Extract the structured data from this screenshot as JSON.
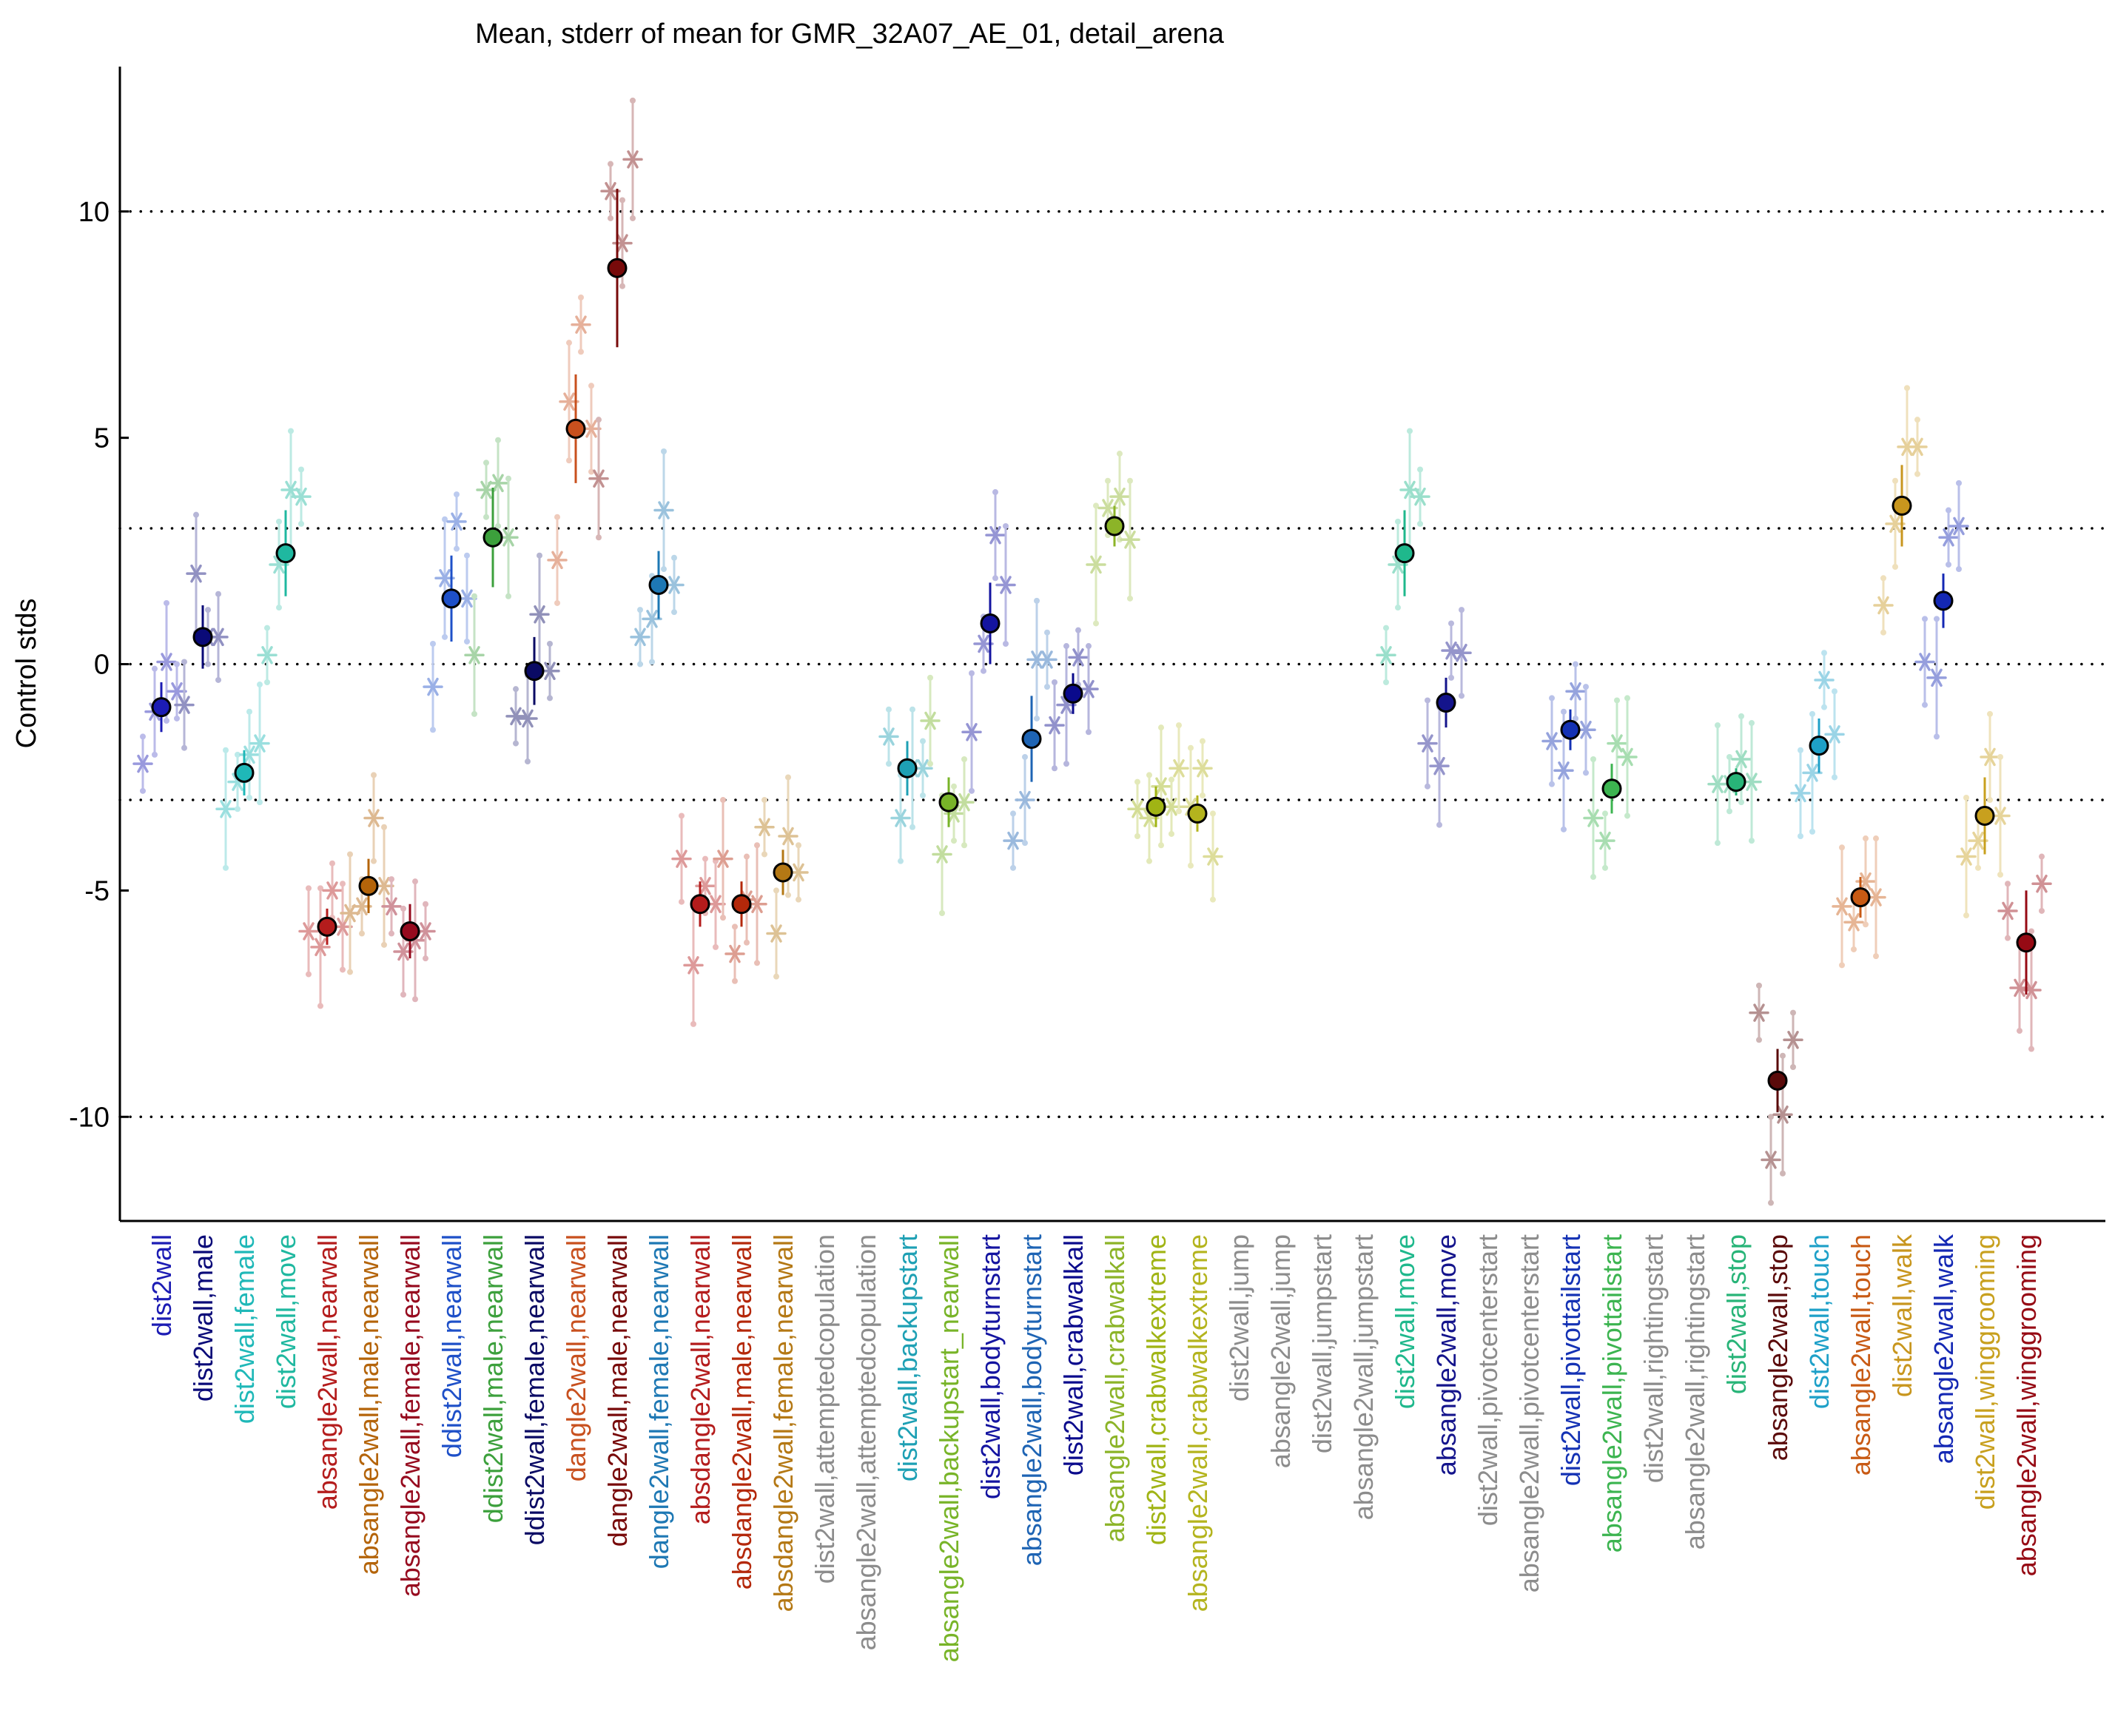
{
  "chart_data": {
    "type": "scatter",
    "title": "Mean, stderr of mean for GMR_32A07_AE_01, detail_arena",
    "ylabel": "Control stds",
    "xlabel": "",
    "ylim": [
      -12.3,
      13.2
    ],
    "yticks": [
      -10,
      -5,
      0,
      5,
      10
    ],
    "ytick_labels": [
      "-10",
      "-5",
      "0",
      "5",
      "10"
    ],
    "reference_lines": [
      -10,
      -3,
      0,
      3,
      10
    ],
    "grid": false,
    "categories": [
      {
        "label": "dist2wall",
        "color": "#1c1cb4",
        "mean": -0.95,
        "err_lo": -1.5,
        "err_hi": -0.4,
        "exp": [
          -2.2,
          -1.05,
          0.05,
          -0.6
        ]
      },
      {
        "label": "dist2wall,male",
        "color": "#0a0a78",
        "mean": 0.6,
        "err_lo": -0.1,
        "err_hi": 1.3,
        "exp": [
          -0.9,
          2.0,
          0.6,
          0.6
        ]
      },
      {
        "label": "dist2wall,female",
        "color": "#1fb8b8",
        "mean": -2.4,
        "err_lo": -2.9,
        "err_hi": -1.9,
        "exp": [
          -3.2,
          -2.6,
          -2.0,
          -1.75
        ]
      },
      {
        "label": "dist2wall,move",
        "color": "#1fb8a0",
        "mean": 2.45,
        "err_lo": 1.5,
        "err_hi": 3.4,
        "exp": [
          0.2,
          2.2,
          3.85,
          3.7
        ]
      },
      {
        "label": "absangle2wall,nearwall",
        "color": "#b41c1c",
        "mean": -5.8,
        "err_lo": -6.2,
        "err_hi": -5.4,
        "exp": [
          -5.9,
          -6.25,
          -5.0,
          -5.8
        ]
      },
      {
        "label": "absangle2wall,male,nearwall",
        "color": "#b4640a",
        "mean": -4.9,
        "err_lo": -5.5,
        "err_hi": -4.3,
        "exp": [
          -5.5,
          -5.35,
          -3.4,
          -4.9
        ]
      },
      {
        "label": "absangle2wall,female,nearwall",
        "color": "#960a1e",
        "mean": -5.9,
        "err_lo": -6.5,
        "err_hi": -5.3,
        "exp": [
          -5.35,
          -6.35,
          -6.1,
          -5.9
        ]
      },
      {
        "label": "ddist2wall,nearwall",
        "color": "#1e50c8",
        "mean": 1.45,
        "err_lo": 0.5,
        "err_hi": 2.4,
        "exp": [
          -0.5,
          1.9,
          3.15,
          1.45
        ]
      },
      {
        "label": "ddist2wall,male,nearwall",
        "color": "#3ca03c",
        "mean": 2.8,
        "err_lo": 1.7,
        "err_hi": 3.9,
        "exp": [
          0.2,
          3.85,
          4.0,
          2.8
        ]
      },
      {
        "label": "ddist2wall,female,nearwall",
        "color": "#0a0a64",
        "mean": -0.15,
        "err_lo": -0.9,
        "err_hi": 0.6,
        "exp": [
          -1.15,
          -1.2,
          1.1,
          -0.15
        ]
      },
      {
        "label": "dangle2wall,nearwall",
        "color": "#c8501e",
        "mean": 5.2,
        "err_lo": 4.0,
        "err_hi": 6.4,
        "exp": [
          2.3,
          5.8,
          7.5,
          5.2
        ]
      },
      {
        "label": "dangle2wall,male,nearwall",
        "color": "#780a0a",
        "mean": 8.75,
        "err_lo": 7.0,
        "err_hi": 10.5,
        "exp": [
          4.1,
          10.45,
          9.3,
          11.15
        ]
      },
      {
        "label": "dangle2wall,female,nearwall",
        "color": "#1e78b4",
        "mean": 1.75,
        "err_lo": 1.0,
        "err_hi": 2.5,
        "exp": [
          0.6,
          1.0,
          3.4,
          1.75
        ]
      },
      {
        "label": "absdangle2wall,nearwall",
        "color": "#b41c1c",
        "mean": -5.3,
        "err_lo": -5.8,
        "err_hi": -4.8,
        "exp": [
          -4.3,
          -6.65,
          -4.9,
          -5.3
        ]
      },
      {
        "label": "absdangle2wall,male,nearwall",
        "color": "#b4280a",
        "mean": -5.3,
        "err_lo": -5.8,
        "err_hi": -4.8,
        "exp": [
          -4.3,
          -6.4,
          -5.2,
          -5.3
        ]
      },
      {
        "label": "absdangle2wall,female,nearwall",
        "color": "#b47814",
        "mean": -4.6,
        "err_lo": -5.1,
        "err_hi": -4.1,
        "exp": [
          -3.6,
          -5.95,
          -3.8,
          -4.6
        ]
      },
      {
        "label": "dist2wall,attemptedcopulation",
        "color": "#8c8c8c",
        "mean": null,
        "err_lo": null,
        "err_hi": null,
        "exp": []
      },
      {
        "label": "absangle2wall,attemptedcopulation",
        "color": "#8c8c8c",
        "mean": null,
        "err_lo": null,
        "err_hi": null,
        "exp": []
      },
      {
        "label": "dist2wall,backupstart",
        "color": "#1ea0b4",
        "mean": -2.3,
        "err_lo": -2.9,
        "err_hi": -1.7,
        "exp": [
          -1.6,
          -3.4,
          -2.3,
          -2.3
        ]
      },
      {
        "label": "absangle2wall,backupstart_nearwall",
        "color": "#78b428",
        "mean": -3.05,
        "err_lo": -3.6,
        "err_hi": -2.5,
        "exp": [
          -1.25,
          -4.2,
          -3.3,
          -3.05
        ]
      },
      {
        "label": "dist2wall,bodyturnstart",
        "color": "#1414a0",
        "mean": 0.9,
        "err_lo": 0.0,
        "err_hi": 1.8,
        "exp": [
          -1.5,
          0.45,
          2.85,
          1.75
        ]
      },
      {
        "label": "absangle2wall,bodyturnstart",
        "color": "#1e64b4",
        "mean": -1.65,
        "err_lo": -2.6,
        "err_hi": -0.7,
        "exp": [
          -3.9,
          -3.0,
          0.1,
          0.1
        ]
      },
      {
        "label": "dist2wall,crabwalkall",
        "color": "#0a0a8c",
        "mean": -0.65,
        "err_lo": -1.1,
        "err_hi": -0.2,
        "exp": [
          -1.35,
          -0.9,
          0.15,
          -0.55
        ]
      },
      {
        "label": "absangle2wall,crabwalkall",
        "color": "#8cb428",
        "mean": 3.05,
        "err_lo": 2.6,
        "err_hi": 3.5,
        "exp": [
          2.2,
          3.45,
          3.7,
          2.75
        ]
      },
      {
        "label": "dist2wall,crabwalkextreme",
        "color": "#a0b414",
        "mean": -3.15,
        "err_lo": -3.6,
        "err_hi": -2.7,
        "exp": [
          -3.2,
          -3.4,
          -2.7,
          -3.15
        ]
      },
      {
        "label": "absangle2wall,crabwalkextreme",
        "color": "#b4b41e",
        "mean": -3.3,
        "err_lo": -3.7,
        "err_hi": -2.9,
        "exp": [
          -2.3,
          -3.15,
          -2.3,
          -4.25
        ]
      },
      {
        "label": "dist2wall,jump",
        "color": "#8c8c8c",
        "mean": null,
        "err_lo": null,
        "err_hi": null,
        "exp": []
      },
      {
        "label": "absangle2wall,jump",
        "color": "#8c8c8c",
        "mean": null,
        "err_lo": null,
        "err_hi": null,
        "exp": []
      },
      {
        "label": "dist2wall,jumpstart",
        "color": "#8c8c8c",
        "mean": null,
        "err_lo": null,
        "err_hi": null,
        "exp": []
      },
      {
        "label": "absangle2wall,jumpstart",
        "color": "#8c8c8c",
        "mean": null,
        "err_lo": null,
        "err_hi": null,
        "exp": []
      },
      {
        "label": "dist2wall,move",
        "color": "#1fb88c",
        "mean": 2.45,
        "err_lo": 1.5,
        "err_hi": 3.4,
        "exp": [
          0.2,
          2.2,
          3.85,
          3.7
        ]
      },
      {
        "label": "absangle2wall,move",
        "color": "#14148c",
        "mean": -0.85,
        "err_lo": -1.4,
        "err_hi": -0.3,
        "exp": [
          -1.75,
          -2.25,
          0.3,
          0.25
        ]
      },
      {
        "label": "dist2wall,pivotcenterstart",
        "color": "#8c8c8c",
        "mean": null,
        "err_lo": null,
        "err_hi": null,
        "exp": []
      },
      {
        "label": "absangle2wall,pivotcenterstart",
        "color": "#8c8c8c",
        "mean": null,
        "err_lo": null,
        "err_hi": null,
        "exp": []
      },
      {
        "label": "dist2wall,pivottailstart",
        "color": "#1432b4",
        "mean": -1.45,
        "err_lo": -1.9,
        "err_hi": -1.0,
        "exp": [
          -1.7,
          -2.35,
          -0.6,
          -1.45
        ]
      },
      {
        "label": "absangle2wall,pivottailstart",
        "color": "#3cb450",
        "mean": -2.75,
        "err_lo": -3.3,
        "err_hi": -2.2,
        "exp": [
          -3.4,
          -3.9,
          -1.75,
          -2.05
        ]
      },
      {
        "label": "dist2wall,rightingstart",
        "color": "#8c8c8c",
        "mean": null,
        "err_lo": null,
        "err_hi": null,
        "exp": []
      },
      {
        "label": "absangle2wall,rightingstart",
        "color": "#8c8c8c",
        "mean": null,
        "err_lo": null,
        "err_hi": null,
        "exp": []
      },
      {
        "label": "dist2wall,stop",
        "color": "#28b478",
        "mean": -2.6,
        "err_lo": -2.9,
        "err_hi": -2.3,
        "exp": [
          -2.65,
          -2.65,
          -2.1,
          -2.6
        ]
      },
      {
        "label": "absangle2wall,stop",
        "color": "#5a0a0a",
        "mean": -9.2,
        "err_lo": -9.9,
        "err_hi": -8.5,
        "exp": [
          -7.7,
          -10.95,
          -9.95,
          -8.3
        ]
      },
      {
        "label": "dist2wall,touch",
        "color": "#1ea0c8",
        "mean": -1.8,
        "err_lo": -2.4,
        "err_hi": -1.2,
        "exp": [
          -2.85,
          -2.4,
          -0.35,
          -1.55
        ]
      },
      {
        "label": "absangle2wall,touch",
        "color": "#c85a14",
        "mean": -5.15,
        "err_lo": -5.6,
        "err_hi": -4.7,
        "exp": [
          -5.35,
          -5.7,
          -4.8,
          -5.15
        ]
      },
      {
        "label": "dist2wall,walk",
        "color": "#c8961e",
        "mean": 3.5,
        "err_lo": 2.6,
        "err_hi": 4.4,
        "exp": [
          1.3,
          3.1,
          4.8,
          4.8
        ]
      },
      {
        "label": "absangle2wall,walk",
        "color": "#1428b4",
        "mean": 1.4,
        "err_lo": 0.8,
        "err_hi": 2.0,
        "exp": [
          0.05,
          -0.3,
          2.8,
          3.05
        ]
      },
      {
        "label": "dist2wall,winggrooming",
        "color": "#c8a01e",
        "mean": -3.35,
        "err_lo": -4.2,
        "err_hi": -2.5,
        "exp": [
          -4.25,
          -3.9,
          -2.05,
          -3.35
        ]
      },
      {
        "label": "absangle2wall,winggrooming",
        "color": "#960a14",
        "mean": -6.15,
        "err_lo": -7.3,
        "err_hi": -5.0,
        "exp": [
          -5.45,
          -7.15,
          -7.2,
          -4.85
        ]
      }
    ]
  }
}
